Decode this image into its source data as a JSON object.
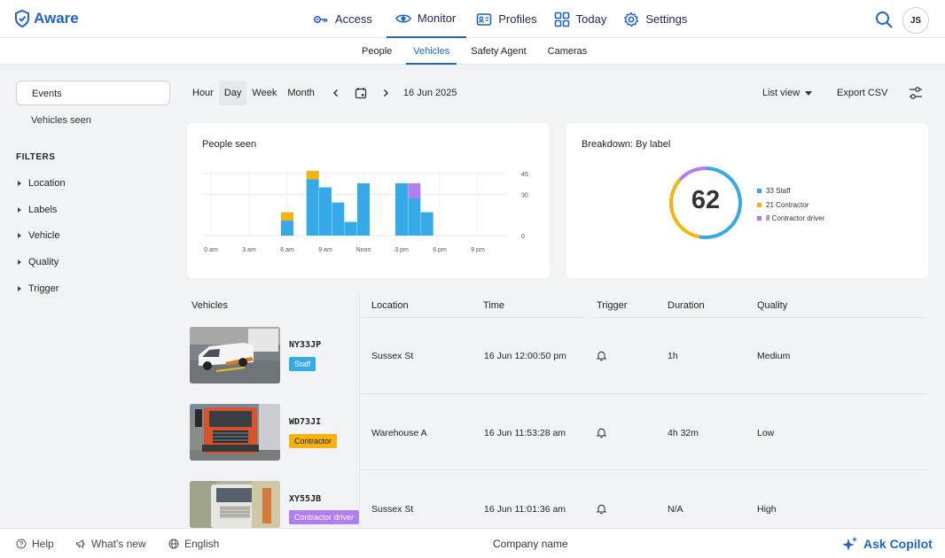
{
  "app": {
    "name": "Aware"
  },
  "nav": {
    "items": [
      {
        "label": "Access",
        "icon": "key-icon"
      },
      {
        "label": "Monitor",
        "icon": "eye-icon",
        "active": true
      },
      {
        "label": "Profiles",
        "icon": "id-card-icon"
      },
      {
        "label": "Today",
        "icon": "grid-icon"
      },
      {
        "label": "Settings",
        "icon": "gear-icon"
      }
    ],
    "avatar": "JS"
  },
  "subtabs": [
    {
      "label": "People"
    },
    {
      "label": "Vehicles",
      "active": true
    },
    {
      "label": "Safety Agent"
    },
    {
      "label": "Cameras"
    }
  ],
  "sidebar": {
    "events": "Events",
    "vehicles_seen": "Vehicles seen",
    "filters_title": "FILTERS",
    "filters": [
      "Location",
      "Labels",
      "Vehicle",
      "Quality",
      "Trigger"
    ]
  },
  "toolbar": {
    "ranges": [
      "Hour",
      "Day",
      "Week",
      "Month"
    ],
    "active_range": "Day",
    "date": "16 Jun 2025",
    "list_view": "List view",
    "export": "Export CSV"
  },
  "people_chart": {
    "title": "People seen",
    "chart_data": {
      "type": "bar",
      "stacked": true,
      "y_ticks": [
        "45",
        "30",
        "0"
      ],
      "x_ticks": [
        "0 am",
        "3 am",
        "6 am",
        "9 am",
        "Noon",
        "3 pm",
        "6 pm",
        "9 pm"
      ],
      "hours": [
        6,
        8,
        9,
        10,
        11,
        12,
        13,
        15,
        16,
        17
      ],
      "series": [
        {
          "name": "Staff",
          "color": "#36aae8",
          "values": [
            11,
            41,
            35,
            24,
            10,
            38,
            0,
            38,
            27,
            17
          ]
        },
        {
          "name": "Contractor",
          "color": "#f5b40c",
          "values": [
            6,
            6,
            0,
            0,
            0,
            0,
            0,
            0,
            0,
            0
          ]
        },
        {
          "name": "Contractor driver",
          "color": "#b07ef0",
          "values": [
            0,
            0,
            0,
            0,
            0,
            0,
            0,
            0,
            11,
            0
          ]
        }
      ]
    }
  },
  "breakdown": {
    "title": "Breakdown: By label",
    "total": "62",
    "chart_data": {
      "type": "pie",
      "donut": true,
      "categories": [
        "Staff",
        "Contractor",
        "Contractor driver"
      ],
      "values": [
        33,
        21,
        8
      ],
      "colors": [
        "#36aae8",
        "#f5b40c",
        "#b07ef0"
      ]
    },
    "legend": [
      "33 Staff",
      "21 Contractor",
      "8 Contractor driver"
    ]
  },
  "table": {
    "headers": [
      "Vehicles",
      "Location",
      "Time",
      "Trigger",
      "Duration",
      "Quality"
    ],
    "rows": [
      {
        "plate": "NY33JP",
        "label": "Staff",
        "label_color": "#36aae8",
        "label_text_color": "#ffffff",
        "location": "Sussex St",
        "time": "16 Jun 12:00:50 pm",
        "duration": "1h",
        "quality": "Medium"
      },
      {
        "plate": "WD73JI",
        "label": "Contractor",
        "label_color": "#f5b40c",
        "label_text_color": "#222222",
        "location": "Warehouse A",
        "time": "16 Jun 11:53:28 am",
        "duration": "4h 32m",
        "quality": "Low"
      },
      {
        "plate": "XY55JB",
        "label": "Contractor driver",
        "label_color": "#b07ef0",
        "label_text_color": "#ffffff",
        "location": "Sussex St",
        "time": "16 Jun 11:01:36 am",
        "duration": "N/A",
        "quality": "High"
      }
    ]
  },
  "footer": {
    "help": "Help",
    "whats_new": "What's new",
    "language": "English",
    "company": "Company name",
    "copilot": "Ask Copilot"
  }
}
